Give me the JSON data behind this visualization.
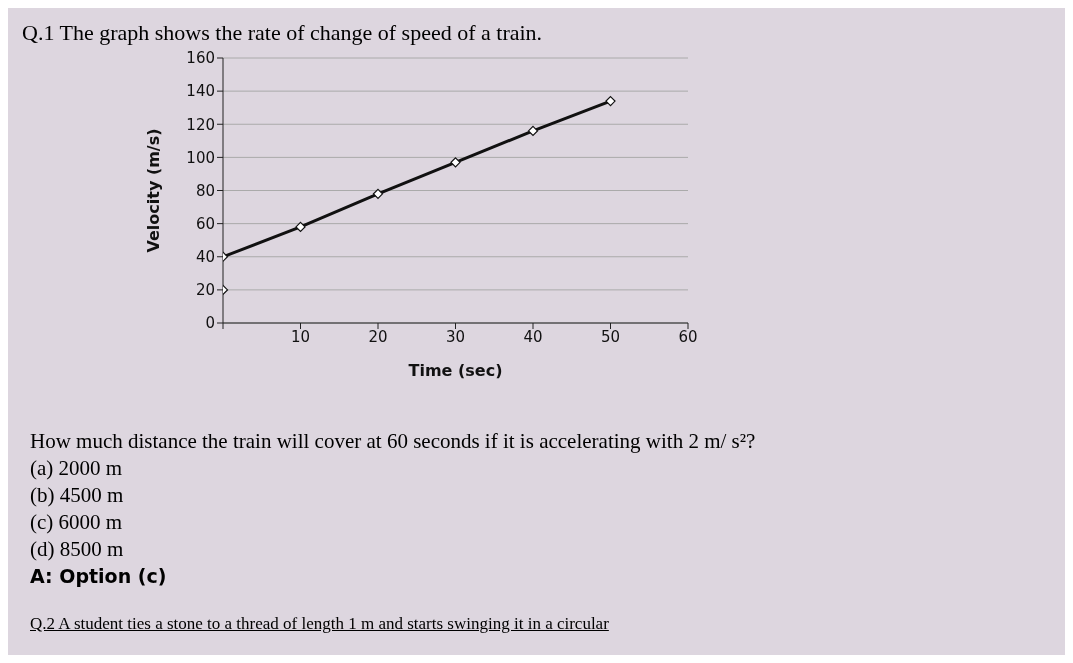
{
  "chart_data": {
    "type": "line",
    "title": "Q.1 The graph shows the rate of change of speed of a train.",
    "xlabel": "Time (sec)",
    "ylabel": "Velocity (m/s)",
    "series": [
      {
        "color": "#111111",
        "x": [
          0,
          10,
          20,
          30,
          40,
          50
        ],
        "values": [
          40,
          58,
          78,
          97,
          116,
          134
        ]
      },
      {
        "type": "scatter",
        "color": "#111111",
        "x": [
          0
        ],
        "values": [
          20
        ]
      }
    ],
    "xlim": [
      0,
      60
    ],
    "xticks": [
      {
        "value": 0,
        "label": null
      },
      10,
      20,
      30,
      40,
      50,
      60
    ],
    "ylim": [
      0,
      160
    ],
    "yticks": [
      0,
      20,
      40,
      60,
      80,
      100,
      120,
      140,
      160
    ],
    "grid": "y",
    "marker": "diamond",
    "line_style": "solid",
    "annotations": [
      "How much distance the train will cover at 60 seconds if it is accelerating with 2 m/ s²?",
      "(a) 2000 m",
      "(b) 4500 m",
      "(c) 6000 m",
      "(d) 8500 m",
      "A: Option (c)",
      "Q.2 A student ties a stone to a thread of length 1 m and starts swinging it in a circular"
    ]
  }
}
